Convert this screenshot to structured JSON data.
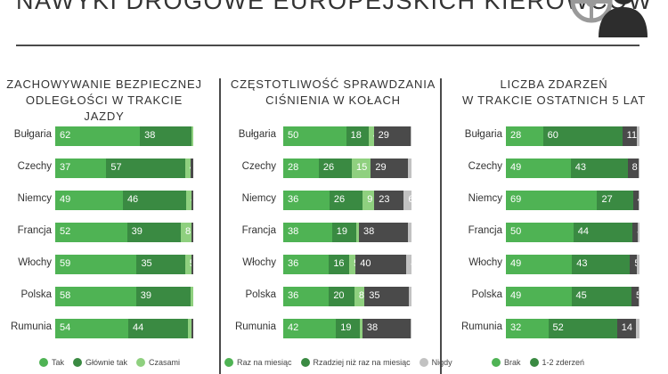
{
  "header": {
    "title": "NAWYKI DROGOWE EUROPEJSKICH KIEROWCÓW",
    "icon": "driver-steering-wheel-icon"
  },
  "colors": {
    "dark_green": "#3a8a42",
    "mid_green": "#4fb354",
    "light_green": "#8fd07f",
    "dark_gray": "#4a4a4a",
    "light_gray": "#c2c2c2"
  },
  "chart_data": [
    {
      "type": "bar",
      "orientation": "horizontal-stacked-100",
      "title": "ZACHOWYWANIE BEZPIECZNEJ\nODLEGŁOŚCI W TRAKCIE JAZDY",
      "categories": [
        "Bułgaria",
        "Czechy",
        "Niemcy",
        "Francja",
        "Włochy",
        "Polska",
        "Rumunia"
      ],
      "series": [
        {
          "name": "Tak",
          "color": "#4fb354",
          "values": [
            62,
            37,
            49,
            52,
            59,
            58,
            54
          ]
        },
        {
          "name": "Głównie tak",
          "color": "#3a8a42",
          "values": [
            38,
            57,
            46,
            39,
            35,
            39,
            44
          ]
        },
        {
          "name": "Czasami",
          "color": "#8fd07f",
          "values": [
            1,
            4,
            4,
            8,
            5,
            2,
            3
          ]
        },
        {
          "name": "",
          "color": "#4a4a4a",
          "values": [
            null,
            2,
            1,
            1,
            1,
            null,
            1
          ]
        }
      ],
      "legend": [
        "Tak",
        "Głównie tak",
        "Czasami"
      ]
    },
    {
      "type": "bar",
      "orientation": "horizontal-stacked-100",
      "title": "CZĘSTOTLIWOŚĆ SPRAWDZANIA\nCIŚNIENIA W KOŁACH",
      "categories": [
        "Bułgaria",
        "Czechy",
        "Niemcy",
        "Francja",
        "Włochy",
        "Polska",
        "Rumunia"
      ],
      "series": [
        {
          "name": "Raz na miesiąc",
          "color": "#4fb354",
          "values": [
            50,
            28,
            36,
            38,
            36,
            36,
            42
          ]
        },
        {
          "name": "Rzadziej niż raz na miesiąc",
          "color": "#3a8a42",
          "values": [
            18,
            26,
            26,
            19,
            16,
            20,
            19
          ]
        },
        {
          "name": "",
          "color": "#8fd07f",
          "values": [
            4,
            15,
            9,
            2,
            5,
            8,
            2
          ]
        },
        {
          "name": "",
          "color": "#4a4a4a",
          "values": [
            29,
            29,
            23,
            38,
            40,
            35,
            38
          ]
        },
        {
          "name": "Nigdy",
          "color": "#c2c2c2",
          "values": [
            1,
            3,
            6,
            3,
            4,
            2,
            1
          ]
        }
      ],
      "legend": [
        "Raz na miesiąc",
        "Rzadziej niż raz na miesiąc",
        "Nigdy"
      ]
    },
    {
      "type": "bar",
      "orientation": "horizontal-stacked-100",
      "title": "LICZBA ZDARZEŃ\nW TRAKCIE OSTATNICH 5 LAT",
      "categories": [
        "Bułgaria",
        "Czechy",
        "Niemcy",
        "Francja",
        "Włochy",
        "Polska",
        "Rumunia"
      ],
      "series": [
        {
          "name": "Brak",
          "color": "#4fb354",
          "values": [
            28,
            49,
            69,
            50,
            49,
            49,
            32
          ]
        },
        {
          "name": "1-2 zderzeń",
          "color": "#3a8a42",
          "values": [
            60,
            43,
            27,
            44,
            43,
            45,
            52
          ]
        },
        {
          "name": "",
          "color": "#4a4a4a",
          "values": [
            11,
            8,
            4,
            4,
            5,
            5,
            14
          ]
        },
        {
          "name": "",
          "color": "#c2c2c2",
          "values": [
            2,
            1,
            1,
            1,
            2,
            1,
            3
          ]
        }
      ],
      "legend": [
        "Brak",
        "1-2 zderzeń"
      ]
    }
  ]
}
